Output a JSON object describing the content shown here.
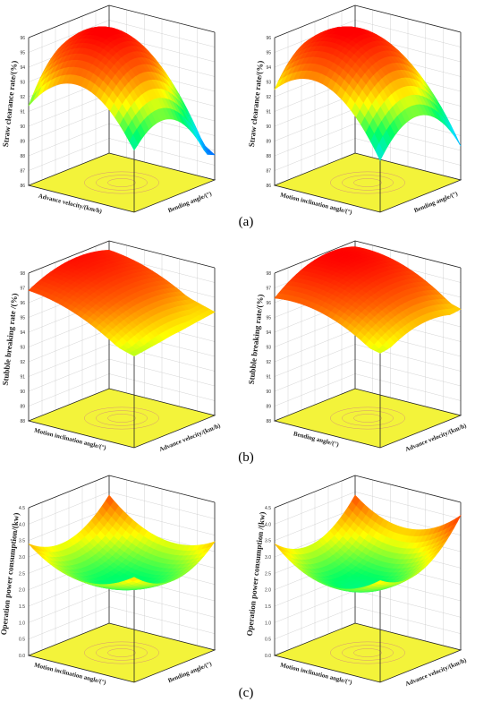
{
  "colors": {
    "floor": "#f3f33a",
    "contour": "#d08080",
    "colormap": [
      "#5a00ff",
      "#0066ff",
      "#00e5ff",
      "#00ff66",
      "#ffff00",
      "#ff6600",
      "#ff0000"
    ]
  },
  "panel_labels": [
    "(a)",
    "(b)",
    "(c)"
  ],
  "chart_data": [
    {
      "type": "surface3d",
      "panel": "(a)",
      "zlabel": "Straw clearance rate/(%)",
      "xlabel": "Advance velocity/(km/h)",
      "ylabel": "Bending angle/(°)",
      "zticks": [
        "86",
        "87",
        "88",
        "89",
        "90",
        "91",
        "92",
        "93",
        "94",
        "95",
        "96"
      ],
      "zlim": [
        86,
        96
      ],
      "corner_values": {
        "front": 90.2,
        "right": 87.7,
        "back": 92.5,
        "left": 90.3
      },
      "peak": {
        "u": 0.55,
        "v": 0.45,
        "z": 96.0
      }
    },
    {
      "type": "surface3d",
      "panel": "(a)",
      "zlabel": "Straw clearance rate/(%)",
      "xlabel": "Motion inclination angle/(°)",
      "ylabel": "Bending angle/(°)",
      "zticks": [
        "86",
        "87",
        "88",
        "89",
        "90",
        "91",
        "92",
        "93",
        "94",
        "95",
        "96"
      ],
      "zlim": [
        86,
        96
      ],
      "corner_values": {
        "front": 89.5,
        "right": 88.3,
        "back": 92.3,
        "left": 92.5
      },
      "peak": {
        "u": 0.5,
        "v": 0.5,
        "z": 95.8
      }
    },
    {
      "type": "surface3d",
      "panel": "(b)",
      "zlabel": "Stubble breaking rate /(%)",
      "xlabel": "Motion inclination angle/(°)",
      "ylabel": "Advance velocity/(km/h)",
      "zticks": [
        "88",
        "89",
        "90",
        "91",
        "92",
        "93",
        "94",
        "95",
        "96",
        "97",
        "98"
      ],
      "zlim": [
        88,
        98
      ],
      "corner_values": {
        "front": 94.2,
        "right": 95.0,
        "back": 97.1,
        "left": 96.3
      },
      "peak": {
        "u": 0.7,
        "v": 0.45,
        "z": 97.3
      }
    },
    {
      "type": "surface3d",
      "panel": "(b)",
      "zlabel": "Stubble breaking rate/(%)",
      "xlabel": "Bending angle/(°)",
      "ylabel": "Advance velocity/(km/h)",
      "zticks": [
        "88",
        "89",
        "90",
        "91",
        "92",
        "93",
        "94",
        "95",
        "96",
        "97",
        "98"
      ],
      "zlim": [
        88,
        98
      ],
      "corner_values": {
        "front": 94.4,
        "right": 95.2,
        "back": 97.3,
        "left": 96.0
      },
      "peak": {
        "u": 0.6,
        "v": 0.5,
        "z": 97.6
      }
    },
    {
      "type": "surface3d",
      "panel": "(c)",
      "zlabel": "Operation power consumption/(kw)",
      "xlabel": "Motion inclination angle/(°)",
      "ylabel": "Bending angle/(°)",
      "zticks": [
        "0.0",
        "0.5",
        "1.0",
        "1.5",
        "2.0",
        "2.5",
        "3.0",
        "3.5",
        "4.0",
        "4.5"
      ],
      "zlim": [
        0,
        4.5
      ],
      "corner_values": {
        "front": 3.2,
        "right": 3.3,
        "back": 3.9,
        "left": 3.4
      },
      "valley": {
        "u": 0.5,
        "v": 0.5,
        "z": 2.2
      }
    },
    {
      "type": "surface3d",
      "panel": "(c)",
      "zlabel": "Operation power consumption /(kw)",
      "xlabel": "Motion inclination angle/(°)",
      "ylabel": "Advance velocity/(km/h)",
      "zticks": [
        "0.0",
        "0.5",
        "1.0",
        "1.5",
        "2.0",
        "2.5",
        "3.0",
        "3.5",
        "4.0",
        "4.5"
      ],
      "zlim": [
        0,
        4.5
      ],
      "corner_values": {
        "front": 3.1,
        "right": 4.1,
        "back": 3.9,
        "left": 3.4
      },
      "valley": {
        "u": 0.5,
        "v": 0.5,
        "z": 2.2
      }
    }
  ]
}
